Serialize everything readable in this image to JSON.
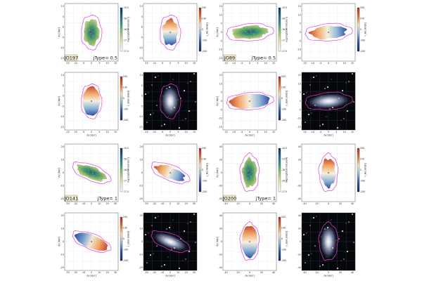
{
  "galaxies": [
    {
      "id": "jo197",
      "name": "JO197",
      "jtype_label": "jType= 0.5",
      "map_colorbar_ticks": [
        "-15.5",
        "-16",
        "-16.5",
        "-17",
        "-17.5"
      ],
      "map_colorbar_label": "log[erg/s/cm²/arcsec²]",
      "vel_colorbar_ticks": [
        "200",
        "100",
        "0",
        "-100",
        "-200"
      ],
      "vel_colorbar_label": "v_Hα [km/s]",
      "vel_colorbar_label_bottom": "v_stars [km/s]",
      "y_ticks": [
        "10",
        "5",
        "0",
        "-5",
        "-10",
        "-15"
      ],
      "x_ticks": [
        "-15",
        "-10",
        "-5",
        "0",
        "5",
        "10",
        "15"
      ],
      "x_label": "Δx [kpc]",
      "y_label": "Δy [kpc]",
      "image_x_ticks": [
        "-15",
        "-10",
        "-5",
        "0",
        "5",
        "10",
        "15"
      ]
    },
    {
      "id": "jo89",
      "name": "JO89",
      "jtype_label": "jType= 0.5",
      "map_colorbar_ticks": [
        "-15.5",
        "-16",
        "-16.5",
        "-17",
        "-17.5"
      ],
      "map_colorbar_label": "log[erg/s/cm²/arcsec²]",
      "vel_colorbar_ticks": [
        "200",
        "100",
        "0",
        "-100",
        "-200"
      ],
      "vel_colorbar_label": "v_Hα [km/s]",
      "vel_colorbar_label_bottom": "v_stars [km/s]",
      "y_ticks": [
        "15",
        "10",
        "5",
        "0",
        "-5",
        "-10",
        "-15"
      ],
      "x_ticks": [
        "-15",
        "-10",
        "-5",
        "0",
        "5",
        "10",
        "15"
      ],
      "x_label": "Δx [kpc]",
      "y_label": "Δy [kpc]",
      "image_x_ticks": [
        "-15",
        "-10",
        "-5",
        "0",
        "5",
        "10",
        "15"
      ]
    },
    {
      "id": "jo141",
      "name": "JO141",
      "jtype_label": "jType= 1",
      "map_colorbar_ticks": [
        "-15.5",
        "-16",
        "-16.5",
        "-17",
        "-17.5"
      ],
      "map_colorbar_label": "log[erg/s/cm²/arcsec²]",
      "vel_colorbar_ticks": [
        "200",
        "100",
        "0",
        "-100",
        "-200"
      ],
      "vel_colorbar_label": "v_Hα [km/s]",
      "vel_colorbar_label_bottom": "v_stars [km/s]",
      "y_ticks": [
        "20",
        "10",
        "0",
        "-10",
        "-20"
      ],
      "x_ticks": [
        "-30",
        "-20",
        "-10",
        "0",
        "10",
        "20",
        "30"
      ],
      "x_label": "Δx [kpc]",
      "y_label": "Δy [kpc]",
      "image_x_ticks": [
        "-30",
        "-20",
        "-10",
        "0",
        "10",
        "20",
        "30"
      ]
    },
    {
      "id": "jo200",
      "name": "JO200",
      "jtype_label": "jType= 1",
      "map_colorbar_ticks": [
        "-14.5",
        "-15.5",
        "-16",
        "-16.5",
        "-17.5"
      ],
      "map_colorbar_label": "log[erg/s/cm²/arcsec²]",
      "vel_colorbar_ticks": [
        "200",
        "100",
        "0",
        "-100",
        "-200"
      ],
      "vel_colorbar_label": "v_Hα [km/s]",
      "vel_colorbar_label_bottom": "v_stars [km/s]",
      "y_ticks": [
        "40",
        "20",
        "0",
        "-20",
        "-40"
      ],
      "x_ticks": [
        "-40",
        "-20",
        "0",
        "20",
        "40"
      ],
      "x_label": "Δx [kpc]",
      "y_label": "Δy [kpc]",
      "image_x_ticks": [
        "-40",
        "-20",
        "0",
        "20",
        "40"
      ]
    }
  ]
}
